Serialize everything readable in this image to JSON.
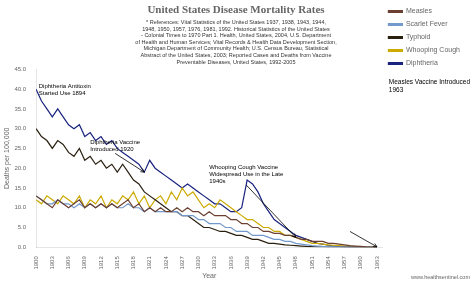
{
  "chart_data": {
    "type": "line",
    "title": "United States Disease Mortality Rates",
    "subtitle": "* References: Vital Statistics of the United States 1937, 1938, 1943, 1944,\n1948, 1950, 1957, 1976, 1981, 1992. Historical Statistics of the United States\n- Colonial Times to 1970 Part 1. Health, United States, 2004, U.S. Department\nof Health and Human Services; Vital Records & Health Data Development Section,\nMichigan Department of Community Health; U.S. Census Bureau, Statistical\nAbstract of the United States, 2003; Reported Cases and Deaths from Vaccine\nPreventable Diseases, United States, 1992-2005",
    "xlabel": "Year",
    "ylabel": "Deaths per 100,000",
    "xlim": [
      1900,
      1964
    ],
    "ylim": [
      0,
      45
    ],
    "xticks": [
      1900,
      1903,
      1906,
      1909,
      1912,
      1915,
      1918,
      1921,
      1924,
      1927,
      1930,
      1933,
      1936,
      1939,
      1942,
      1945,
      1948,
      1951,
      1954,
      1957,
      1960,
      1963
    ],
    "yticks": [
      {
        "value": 0.0,
        "label": "0.0"
      },
      {
        "value": 5.0,
        "label": "5.0"
      },
      {
        "value": 10.0,
        "label": "10.0"
      },
      {
        "value": 15.0,
        "label": "15.0"
      },
      {
        "value": 20.0,
        "label": "20.0"
      },
      {
        "value": 25.0,
        "label": "25.0"
      },
      {
        "value": 30.0,
        "label": "30.0"
      },
      {
        "value": 35.0,
        "label": "35.0"
      },
      {
        "value": 40.0,
        "label": "40.0"
      },
      {
        "value": 45.0,
        "label": "45.0"
      }
    ],
    "grid": false,
    "legend": "right",
    "marker": "none",
    "x": [
      1900,
      1901,
      1902,
      1903,
      1904,
      1905,
      1906,
      1907,
      1908,
      1909,
      1910,
      1911,
      1912,
      1913,
      1914,
      1915,
      1916,
      1917,
      1918,
      1919,
      1920,
      1921,
      1922,
      1923,
      1924,
      1925,
      1926,
      1927,
      1928,
      1929,
      1930,
      1931,
      1932,
      1933,
      1934,
      1935,
      1936,
      1937,
      1938,
      1939,
      1940,
      1941,
      1942,
      1943,
      1944,
      1945,
      1946,
      1947,
      1948,
      1949,
      1950,
      1951,
      1952,
      1953,
      1954,
      1955,
      1956,
      1957,
      1958,
      1959,
      1960,
      1961,
      1962,
      1963
    ],
    "series": [
      {
        "name": "Measles",
        "color": "#6b4030",
        "values": [
          13,
          12,
          11,
          10,
          12,
          11,
          10,
          11,
          12,
          10,
          11,
          10,
          11,
          10,
          11,
          10,
          11,
          12,
          10,
          11,
          9,
          10,
          9,
          10,
          9,
          9,
          10,
          9,
          10,
          9,
          9,
          8,
          9,
          8,
          8,
          8,
          7,
          7,
          6,
          6,
          5,
          5,
          4,
          4,
          3.5,
          3.5,
          3,
          3,
          2.5,
          2,
          2,
          1.5,
          1.5,
          1.5,
          1,
          1,
          0.8,
          0.6,
          0.4,
          0.3,
          0.2,
          0.1,
          0.05,
          0.02
        ]
      },
      {
        "name": "Scarlet Fever",
        "color": "#7399cc",
        "values": [
          13,
          12,
          11,
          11,
          12,
          11,
          11,
          10,
          11,
          10,
          11,
          10,
          11,
          10,
          11,
          10,
          10,
          11,
          10,
          10,
          9,
          10,
          9,
          9,
          9,
          9,
          9,
          8,
          8,
          8,
          7,
          7,
          6,
          6,
          6,
          5,
          5,
          4,
          4,
          4,
          3,
          3,
          3,
          2.5,
          2,
          2,
          1.5,
          1.5,
          1,
          0.8,
          0.6,
          0.4,
          0.3,
          0.2,
          0.15,
          0.1,
          0.08,
          0.06,
          0.04,
          0.03,
          0.02,
          0.01,
          0.01,
          0.0
        ]
      },
      {
        "name": "Typhoid",
        "color": "#2a2010",
        "values": [
          30,
          28,
          27,
          25,
          27,
          26,
          24,
          23,
          25,
          22,
          23,
          21,
          22,
          20,
          21,
          19,
          21,
          19,
          17,
          16,
          14,
          13,
          12,
          11,
          10,
          9,
          9,
          8,
          8,
          7,
          6,
          5,
          5,
          4.5,
          4,
          4,
          3.5,
          3,
          3,
          2.5,
          2,
          2,
          1.5,
          1,
          1,
          0.8,
          0.6,
          0.5,
          0.4,
          0.3,
          0.2,
          0.15,
          0.1,
          0.08,
          0.05,
          0.04,
          0.03,
          0.02,
          0.01,
          0.01,
          0.0,
          0.0,
          0.0,
          0.0
        ]
      },
      {
        "name": "Whooping Cough",
        "color": "#ccaa00",
        "values": [
          12,
          11,
          13,
          12,
          11,
          13,
          12,
          11,
          13,
          10,
          12,
          11,
          13,
          10,
          12,
          11,
          13,
          12,
          14,
          11,
          13,
          10,
          12,
          13,
          11,
          14,
          12,
          15,
          13,
          14,
          12,
          10,
          11,
          10,
          12,
          11,
          10,
          9,
          8,
          7,
          7,
          6,
          5,
          5,
          4,
          4,
          3,
          3,
          2.5,
          2,
          1.5,
          1,
          1,
          0.8,
          0.6,
          0.5,
          0.4,
          0.3,
          0.2,
          0.1,
          0.05,
          0.02,
          0.01,
          0.0
        ]
      },
      {
        "name": "Diphtheria",
        "color": "#1a237e",
        "values": [
          40,
          37,
          35,
          33,
          35,
          33,
          31,
          30,
          31,
          28,
          29,
          27,
          28,
          26,
          27,
          25,
          24,
          23,
          22,
          21,
          19,
          22,
          20,
          19,
          18,
          17,
          16,
          15,
          16,
          15,
          14,
          13,
          12,
          11,
          11,
          10,
          9,
          9,
          10,
          17,
          16,
          14,
          11,
          9,
          7,
          6,
          5,
          4,
          3,
          2.5,
          2,
          1.5,
          1,
          0.8,
          0.5,
          0.3,
          0.2,
          0.1,
          0.05,
          0.02,
          0.01,
          0.0,
          0.0,
          0.0
        ]
      }
    ],
    "annotations": [
      {
        "text": "Diphtheria Antitoxin\nStarted Use 1894",
        "x": 1900.5,
        "y": 41.5
      },
      {
        "text": "Diphtheria Vaccine\nIntroduced 1920",
        "x": 1910,
        "y": 24,
        "arrow_x": 1920,
        "arrow_y": 19
      },
      {
        "text": "Whooping Cough Vaccine\nWidespread Use in the Late\n1940s",
        "x": 1932,
        "y": 16,
        "arrow_x": 1948,
        "arrow_y": 2.5
      },
      {
        "x": 1958,
        "y": 4,
        "arrow_x": 1963,
        "arrow_y": 0.1
      }
    ],
    "side_note": "Measles Vaccine Introduced\n1963",
    "credit": "www.healthsentinel.com"
  }
}
